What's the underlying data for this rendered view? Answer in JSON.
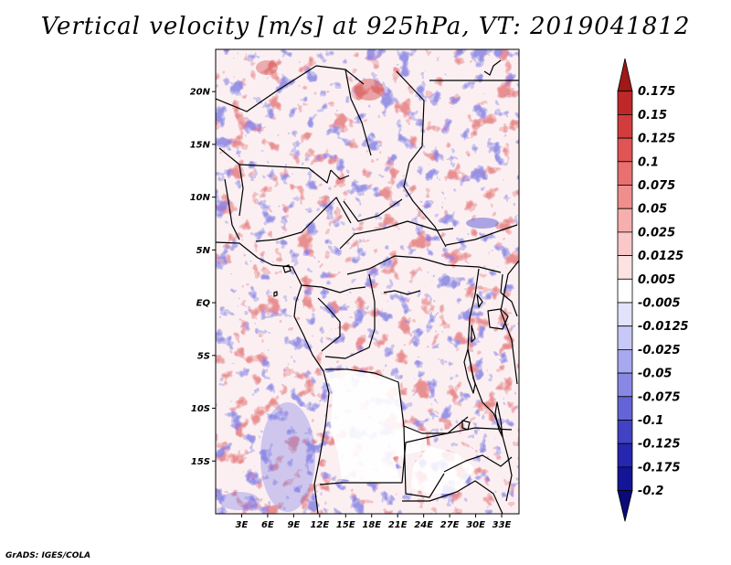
{
  "title": "Vertical velocity [m/s] at 925hPa, VT: 2019041812",
  "credit": "GrADS: IGES/COLA",
  "map": {
    "lon_range": [
      0,
      35
    ],
    "lat_range": [
      -20,
      24
    ],
    "lat_ticks": [
      {
        "value": 20,
        "label": "20N"
      },
      {
        "value": 15,
        "label": "15N"
      },
      {
        "value": 10,
        "label": "10N"
      },
      {
        "value": 5,
        "label": "5N"
      },
      {
        "value": 0,
        "label": "EQ"
      },
      {
        "value": -5,
        "label": "5S"
      },
      {
        "value": -10,
        "label": "10S"
      },
      {
        "value": -15,
        "label": "15S"
      }
    ],
    "lon_ticks": [
      {
        "value": 3,
        "label": "3E"
      },
      {
        "value": 6,
        "label": "6E"
      },
      {
        "value": 9,
        "label": "9E"
      },
      {
        "value": 12,
        "label": "12E"
      },
      {
        "value": 15,
        "label": "15E"
      },
      {
        "value": 18,
        "label": "18E"
      },
      {
        "value": 21,
        "label": "21E"
      },
      {
        "value": 24,
        "label": "24E"
      },
      {
        "value": 27,
        "label": "27E"
      },
      {
        "value": 30,
        "label": "30E"
      },
      {
        "value": 33,
        "label": "33E"
      }
    ]
  },
  "colorbar": {
    "labels": [
      "0.175",
      "0.15",
      "0.125",
      "0.1",
      "0.075",
      "0.05",
      "0.025",
      "0.0125",
      "0.005",
      "-0.005",
      "-0.0125",
      "-0.025",
      "-0.05",
      "-0.075",
      "-0.1",
      "-0.125",
      "-0.175",
      "-0.2"
    ],
    "colors": [
      "#a01818",
      "#be2828",
      "#d23c3c",
      "#e05454",
      "#e87070",
      "#f08e8e",
      "#f6aeae",
      "#fac8c8",
      "#fde2e2",
      "#ffffff",
      "#e2e2fb",
      "#c8c8f6",
      "#a8a8ee",
      "#8888e4",
      "#6464d6",
      "#4242c4",
      "#2626ae",
      "#141496",
      "#0a0a78"
    ]
  }
}
